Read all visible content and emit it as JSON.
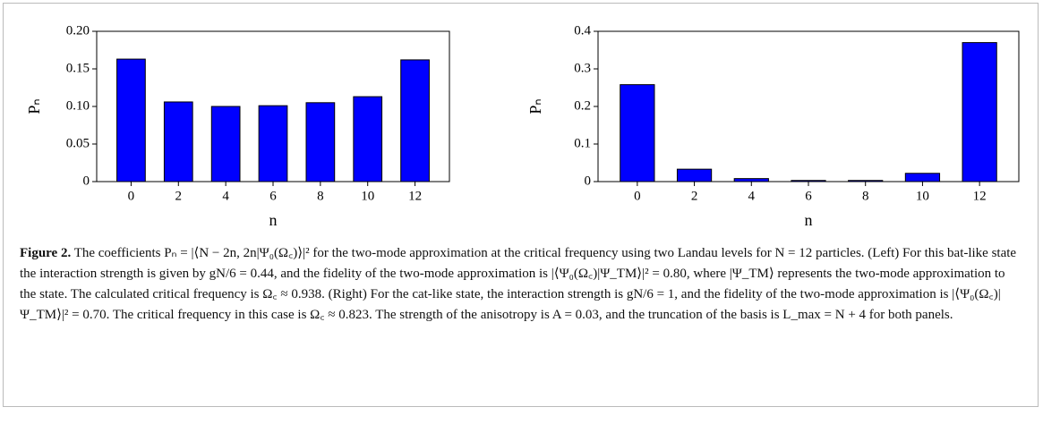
{
  "chart_data": [
    {
      "type": "bar",
      "xlabel": "n",
      "ylabel": "Pₙ",
      "categories": [
        "0",
        "2",
        "4",
        "6",
        "8",
        "10",
        "12"
      ],
      "values": [
        0.163,
        0.106,
        0.1,
        0.101,
        0.105,
        0.113,
        0.162
      ],
      "color": "#0000ff",
      "ylim": [
        0,
        0.2
      ],
      "yticks": [
        0,
        {
          "value": 0.05,
          "label": "0.05"
        },
        {
          "value": 0.1,
          "label": "0.10"
        },
        0.15,
        {
          "value": 0.2,
          "label": "0.20"
        }
      ]
    },
    {
      "type": "bar",
      "xlabel": "n",
      "ylabel": "Pₙ",
      "categories": [
        "0",
        "2",
        "4",
        "6",
        "8",
        "10",
        "12"
      ],
      "values": [
        0.258,
        0.033,
        0.008,
        0.003,
        0.003,
        0.022,
        0.37
      ],
      "color": "#0000ff",
      "ylim": [
        0,
        0.4
      ],
      "yticks": [
        0,
        0.1,
        0.2,
        0.3,
        0.4
      ]
    }
  ],
  "caption": {
    "label": "Figure 2.",
    "text": "The coefficients Pₙ = |⟨N − 2n, 2n|Ψ₀(Ω꜀)⟩|² for the two-mode approximation at the critical frequency using two Landau levels for N = 12 particles. (Left) For this bat-like state the interaction strength is given by gN/6 = 0.44, and the fidelity of the two-mode approximation is |⟨Ψ₀(Ω꜀)|Ψ_TM⟩|² = 0.80, where |Ψ_TM⟩ represents the two-mode approximation to the state. The calculated critical frequency is Ω꜀ ≈ 0.938. (Right) For the cat-like state, the interaction strength is gN/6 = 1, and the fidelity of the two-mode approximation is |⟨Ψ₀(Ω꜀)|Ψ_TM⟩|² = 0.70. The critical frequency in this case is Ω꜀ ≈ 0.823. The strength of the anisotropy is A = 0.03, and the truncation of the basis is L_max = N + 4 for both panels."
  }
}
